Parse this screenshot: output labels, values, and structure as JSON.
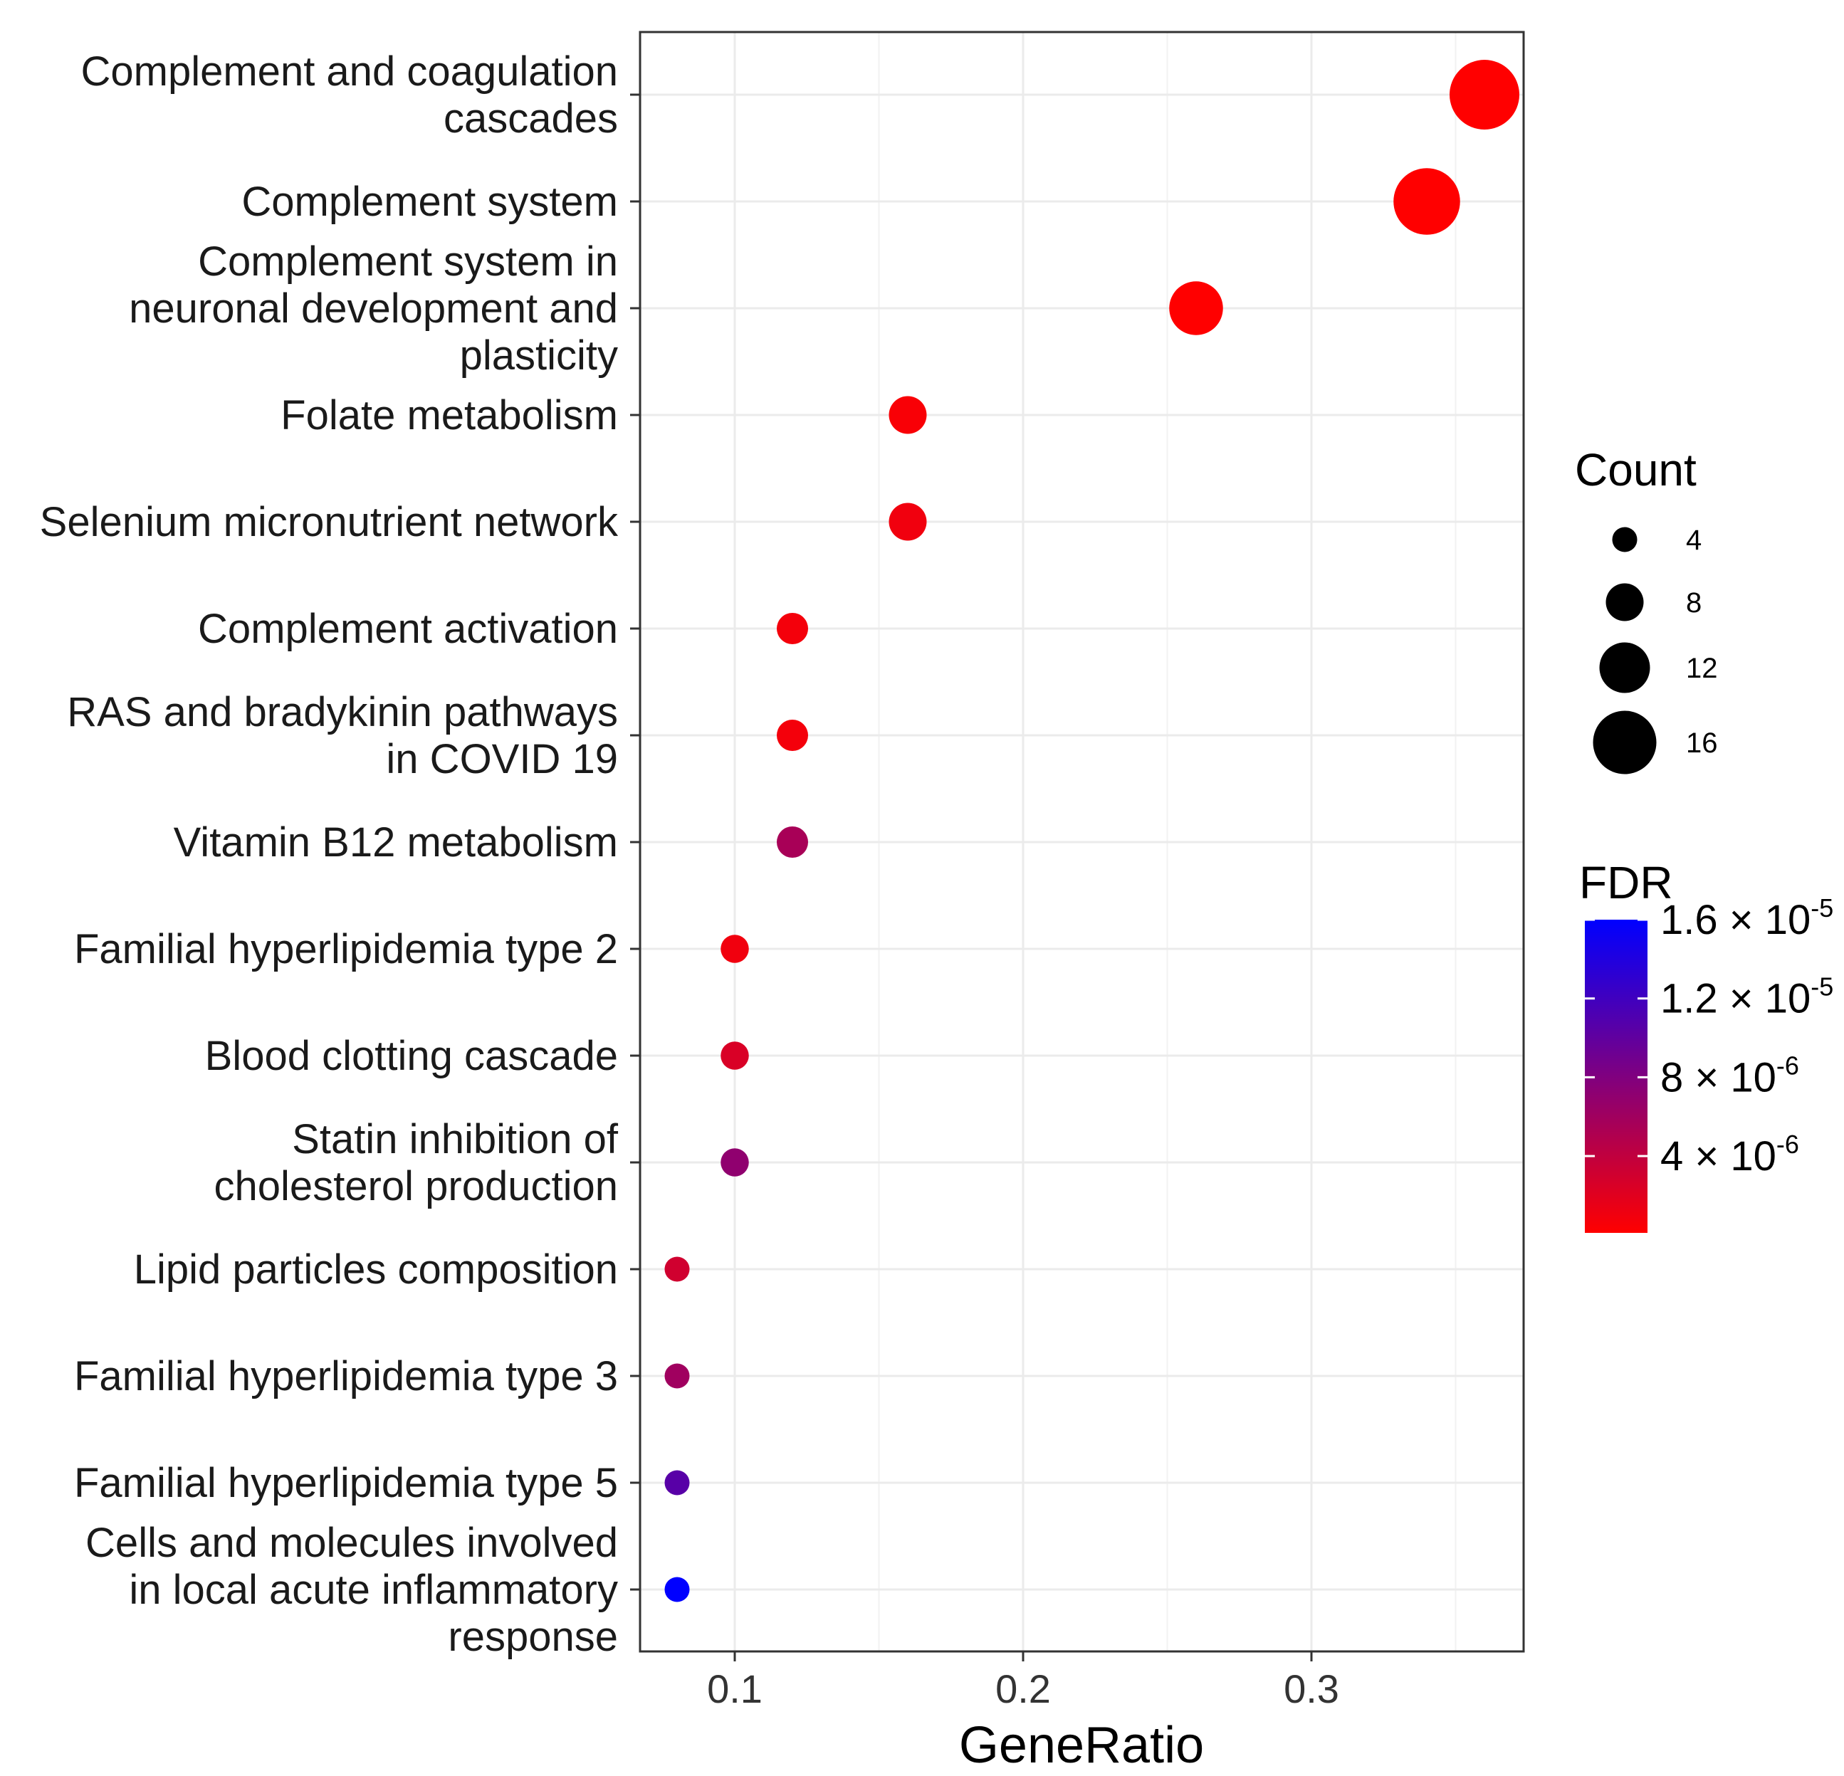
{
  "chart_data": {
    "type": "scatter",
    "subtype": "dot-plot",
    "xlabel": "GeneRatio",
    "ylabel": "",
    "xlim": [
      0.066,
      0.374
    ],
    "x_ticks": [
      "0.1",
      "0.2",
      "0.3"
    ],
    "x_tick_values": [
      0.1,
      0.2,
      0.3
    ],
    "grid": true,
    "categories": [
      [
        "Complement and coagulation",
        "cascades"
      ],
      [
        "Complement system"
      ],
      [
        "Complement system in",
        "neuronal development and",
        "plasticity"
      ],
      [
        "Folate metabolism"
      ],
      [
        "Selenium micronutrient network"
      ],
      [
        "Complement activation"
      ],
      [
        "RAS and bradykinin pathways",
        "in COVID 19"
      ],
      [
        "Vitamin B12 metabolism"
      ],
      [
        "Familial hyperlipidemia type 2"
      ],
      [
        "Blood clotting cascade"
      ],
      [
        "Statin inhibition of",
        "cholesterol production"
      ],
      [
        "Lipid particles composition"
      ],
      [
        "Familial hyperlipidemia type 3"
      ],
      [
        "Familial hyperlipidemia type 5"
      ],
      [
        "Cells and molecules involved",
        "in local acute inflammatory",
        "response"
      ]
    ],
    "gene_ratio": [
      0.36,
      0.34,
      0.26,
      0.16,
      0.16,
      0.12,
      0.12,
      0.12,
      0.1,
      0.1,
      0.1,
      0.08,
      0.08,
      0.08,
      0.08
    ],
    "count": [
      18,
      17,
      13,
      8,
      8,
      6,
      6,
      6,
      5,
      5,
      5,
      4,
      4,
      4,
      4
    ],
    "fdr": [
      1e-07,
      1e-07,
      1e-07,
      5e-07,
      1e-06,
      8e-07,
      8e-07,
      5.5e-06,
      1e-06,
      2.5e-06,
      7e-06,
      3e-06,
      6e-06,
      1.05e-05,
      1.6e-05
    ],
    "size_legend": {
      "title": "Count",
      "values": [
        4,
        8,
        12,
        16
      ],
      "labels": [
        "4",
        "8",
        "12",
        "16"
      ]
    },
    "color_legend": {
      "title": "FDR",
      "range": [
        1e-07,
        1.6e-05
      ],
      "low_color": "#ff0000",
      "high_color": "#0000ff",
      "breaks": [
        1.6e-05,
        1.2e-05,
        8e-06,
        4e-06
      ],
      "labels": [
        {
          "mantissa": "1.6",
          "times": "×",
          "base": "10",
          "exp": "-5"
        },
        {
          "mantissa": "1.2",
          "times": "×",
          "base": "10",
          "exp": "-5"
        },
        {
          "mantissa": "8",
          "times": "×",
          "base": "10",
          "exp": "-6"
        },
        {
          "mantissa": "4",
          "times": "×",
          "base": "10",
          "exp": "-6"
        }
      ]
    }
  }
}
